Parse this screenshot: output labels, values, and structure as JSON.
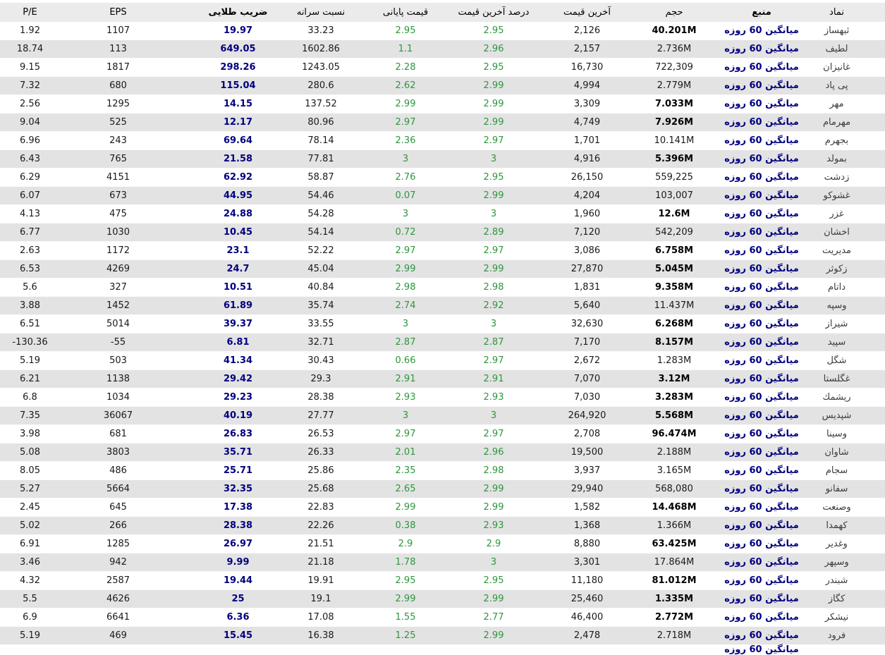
{
  "colors": {
    "source_link": "#000080",
    "golden_ratio": "#000080",
    "price_green": "#2d963c",
    "row_stripe": "#e3e3e3",
    "header_bg": "#ebebeb",
    "volume_bold": "#000000"
  },
  "table": {
    "columns": [
      {
        "key": "symbol",
        "label": "نماد",
        "bold": false
      },
      {
        "key": "source",
        "label": "منبع",
        "bold": true
      },
      {
        "key": "volume",
        "label": "حجم",
        "bold": false
      },
      {
        "key": "last_price",
        "label": "آخرین قیمت",
        "bold": false
      },
      {
        "key": "last_price_pct",
        "label": "درصد آخرین قیمت",
        "bold": false
      },
      {
        "key": "close_price",
        "label": "قیمت پایانی",
        "bold": false
      },
      {
        "key": "per_capita_ratio",
        "label": "نسبت سرانه",
        "bold": false
      },
      {
        "key": "golden_ratio",
        "label": "ضریب طلایی",
        "bold": true
      },
      {
        "key": "eps",
        "label": "EPS",
        "bold": false
      },
      {
        "key": "pe",
        "label": "P/E",
        "bold": false
      }
    ],
    "rows": [
      {
        "symbol": "ثبهساز",
        "source": "میانگین 60 روزه",
        "volume": "40.201M",
        "volume_bold": true,
        "last_price": "2,126",
        "last_price_pct": "2.95",
        "close_price": "2.95",
        "per_capita_ratio": "33.23",
        "golden_ratio": "19.97",
        "eps": "1107",
        "pe": "1.92"
      },
      {
        "symbol": "لطیف",
        "source": "میانگین 60 روزه",
        "volume": "2.736M",
        "volume_bold": false,
        "last_price": "2,157",
        "last_price_pct": "2.96",
        "close_price": "1.1",
        "per_capita_ratio": "1602.86",
        "golden_ratio": "649.05",
        "eps": "113",
        "pe": "18.74"
      },
      {
        "symbol": "غانیزان",
        "source": "میانگین 60 روزه",
        "volume": "722,309",
        "volume_bold": false,
        "last_price": "16,730",
        "last_price_pct": "2.95",
        "close_price": "2.28",
        "per_capita_ratio": "1243.05",
        "golden_ratio": "298.26",
        "eps": "1817",
        "pe": "9.15"
      },
      {
        "symbol": "پی پاد",
        "source": "میانگین 60 روزه",
        "volume": "2.779M",
        "volume_bold": false,
        "last_price": "4,994",
        "last_price_pct": "2.99",
        "close_price": "2.62",
        "per_capita_ratio": "280.6",
        "golden_ratio": "115.04",
        "eps": "680",
        "pe": "7.32"
      },
      {
        "symbol": "مهر",
        "source": "میانگین 60 روزه",
        "volume": "7.033M",
        "volume_bold": true,
        "last_price": "3,309",
        "last_price_pct": "2.99",
        "close_price": "2.99",
        "per_capita_ratio": "137.52",
        "golden_ratio": "14.15",
        "eps": "1295",
        "pe": "2.56"
      },
      {
        "symbol": "مهرمام",
        "source": "میانگین 60 روزه",
        "volume": "7.926M",
        "volume_bold": true,
        "last_price": "4,749",
        "last_price_pct": "2.99",
        "close_price": "2.97",
        "per_capita_ratio": "80.96",
        "golden_ratio": "12.17",
        "eps": "525",
        "pe": "9.04"
      },
      {
        "symbol": "بجهرم",
        "source": "میانگین 60 روزه",
        "volume": "10.141M",
        "volume_bold": false,
        "last_price": "1,701",
        "last_price_pct": "2.97",
        "close_price": "2.36",
        "per_capita_ratio": "78.14",
        "golden_ratio": "69.64",
        "eps": "243",
        "pe": "6.96"
      },
      {
        "symbol": "بمولد",
        "source": "میانگین 60 روزه",
        "volume": "5.396M",
        "volume_bold": true,
        "last_price": "4,916",
        "last_price_pct": "3",
        "close_price": "3",
        "per_capita_ratio": "77.81",
        "golden_ratio": "21.58",
        "eps": "765",
        "pe": "6.43"
      },
      {
        "symbol": "زدشت",
        "source": "میانگین 60 روزه",
        "volume": "559,225",
        "volume_bold": false,
        "last_price": "26,150",
        "last_price_pct": "2.95",
        "close_price": "2.76",
        "per_capita_ratio": "58.87",
        "golden_ratio": "62.92",
        "eps": "4151",
        "pe": "6.29"
      },
      {
        "symbol": "غشوكو",
        "source": "میانگین 60 روزه",
        "volume": "103,007",
        "volume_bold": false,
        "last_price": "4,204",
        "last_price_pct": "2.99",
        "close_price": "0.07",
        "per_capita_ratio": "54.46",
        "golden_ratio": "44.95",
        "eps": "673",
        "pe": "6.07"
      },
      {
        "symbol": "غزر",
        "source": "میانگین 60 روزه",
        "volume": "12.6M",
        "volume_bold": true,
        "last_price": "1,960",
        "last_price_pct": "3",
        "close_price": "3",
        "per_capita_ratio": "54.28",
        "golden_ratio": "24.88",
        "eps": "475",
        "pe": "4.13"
      },
      {
        "symbol": "اخشان",
        "source": "میانگین 60 روزه",
        "volume": "542,209",
        "volume_bold": false,
        "last_price": "7,120",
        "last_price_pct": "2.89",
        "close_price": "0.72",
        "per_capita_ratio": "54.14",
        "golden_ratio": "10.45",
        "eps": "1030",
        "pe": "6.77"
      },
      {
        "symbol": "مدیریت",
        "source": "میانگین 60 روزه",
        "volume": "6.758M",
        "volume_bold": true,
        "last_price": "3,086",
        "last_price_pct": "2.97",
        "close_price": "2.97",
        "per_capita_ratio": "52.22",
        "golden_ratio": "23.1",
        "eps": "1172",
        "pe": "2.63"
      },
      {
        "symbol": "زكوثر",
        "source": "میانگین 60 روزه",
        "volume": "5.045M",
        "volume_bold": true,
        "last_price": "27,870",
        "last_price_pct": "2.99",
        "close_price": "2.99",
        "per_capita_ratio": "45.04",
        "golden_ratio": "24.7",
        "eps": "4269",
        "pe": "6.53"
      },
      {
        "symbol": "داتام",
        "source": "میانگین 60 روزه",
        "volume": "9.358M",
        "volume_bold": true,
        "last_price": "1,831",
        "last_price_pct": "2.98",
        "close_price": "2.98",
        "per_capita_ratio": "40.84",
        "golden_ratio": "10.51",
        "eps": "327",
        "pe": "5.6"
      },
      {
        "symbol": "وسپه",
        "source": "میانگین 60 روزه",
        "volume": "11.437M",
        "volume_bold": false,
        "last_price": "5,640",
        "last_price_pct": "2.92",
        "close_price": "2.74",
        "per_capita_ratio": "35.74",
        "golden_ratio": "61.89",
        "eps": "1452",
        "pe": "3.88"
      },
      {
        "symbol": "شیراز",
        "source": "میانگین 60 روزه",
        "volume": "6.268M",
        "volume_bold": true,
        "last_price": "32,630",
        "last_price_pct": "3",
        "close_price": "3",
        "per_capita_ratio": "33.55",
        "golden_ratio": "39.37",
        "eps": "5014",
        "pe": "6.51"
      },
      {
        "symbol": "سپید",
        "source": "میانگین 60 روزه",
        "volume": "8.157M",
        "volume_bold": true,
        "last_price": "7,170",
        "last_price_pct": "2.87",
        "close_price": "2.87",
        "per_capita_ratio": "32.71",
        "golden_ratio": "6.81",
        "eps": "-55",
        "pe": "-130.36"
      },
      {
        "symbol": "شگل",
        "source": "میانگین 60 روزه",
        "volume": "1.283M",
        "volume_bold": false,
        "last_price": "2,672",
        "last_price_pct": "2.97",
        "close_price": "0.66",
        "per_capita_ratio": "30.43",
        "golden_ratio": "41.34",
        "eps": "503",
        "pe": "5.19"
      },
      {
        "symbol": "غگلستا",
        "source": "میانگین 60 روزه",
        "volume": "3.12M",
        "volume_bold": true,
        "last_price": "7,070",
        "last_price_pct": "2.91",
        "close_price": "2.91",
        "per_capita_ratio": "29.3",
        "golden_ratio": "29.42",
        "eps": "1138",
        "pe": "6.21"
      },
      {
        "symbol": "ریشمك",
        "source": "میانگین 60 روزه",
        "volume": "3.283M",
        "volume_bold": true,
        "last_price": "7,030",
        "last_price_pct": "2.93",
        "close_price": "2.93",
        "per_capita_ratio": "28.38",
        "golden_ratio": "29.23",
        "eps": "1034",
        "pe": "6.8"
      },
      {
        "symbol": "شپدیس",
        "source": "میانگین 60 روزه",
        "volume": "5.568M",
        "volume_bold": true,
        "last_price": "264,920",
        "last_price_pct": "3",
        "close_price": "3",
        "per_capita_ratio": "27.77",
        "golden_ratio": "40.19",
        "eps": "36067",
        "pe": "7.35"
      },
      {
        "symbol": "وسینا",
        "source": "میانگین 60 روزه",
        "volume": "96.474M",
        "volume_bold": true,
        "last_price": "2,708",
        "last_price_pct": "2.97",
        "close_price": "2.97",
        "per_capita_ratio": "26.53",
        "golden_ratio": "26.83",
        "eps": "681",
        "pe": "3.98"
      },
      {
        "symbol": "شاوان",
        "source": "میانگین 60 روزه",
        "volume": "2.188M",
        "volume_bold": false,
        "last_price": "19,500",
        "last_price_pct": "2.96",
        "close_price": "2.01",
        "per_capita_ratio": "26.33",
        "golden_ratio": "35.71",
        "eps": "3803",
        "pe": "5.08"
      },
      {
        "symbol": "سجام",
        "source": "میانگین 60 روزه",
        "volume": "3.165M",
        "volume_bold": false,
        "last_price": "3,937",
        "last_price_pct": "2.98",
        "close_price": "2.35",
        "per_capita_ratio": "25.86",
        "golden_ratio": "25.71",
        "eps": "486",
        "pe": "8.05"
      },
      {
        "symbol": "سفانو",
        "source": "میانگین 60 روزه",
        "volume": "568,080",
        "volume_bold": false,
        "last_price": "29,940",
        "last_price_pct": "2.99",
        "close_price": "2.65",
        "per_capita_ratio": "25.68",
        "golden_ratio": "32.35",
        "eps": "5664",
        "pe": "5.27"
      },
      {
        "symbol": "وصنعت",
        "source": "میانگین 60 روزه",
        "volume": "14.468M",
        "volume_bold": true,
        "last_price": "1,582",
        "last_price_pct": "2.99",
        "close_price": "2.99",
        "per_capita_ratio": "22.83",
        "golden_ratio": "17.38",
        "eps": "645",
        "pe": "2.45"
      },
      {
        "symbol": "كهمدا",
        "source": "میانگین 60 روزه",
        "volume": "1.366M",
        "volume_bold": false,
        "last_price": "1,368",
        "last_price_pct": "2.93",
        "close_price": "0.38",
        "per_capita_ratio": "22.26",
        "golden_ratio": "28.38",
        "eps": "266",
        "pe": "5.02"
      },
      {
        "symbol": "وغدیر",
        "source": "میانگین 60 روزه",
        "volume": "63.425M",
        "volume_bold": true,
        "last_price": "8,880",
        "last_price_pct": "2.9",
        "close_price": "2.9",
        "per_capita_ratio": "21.51",
        "golden_ratio": "26.97",
        "eps": "1285",
        "pe": "6.91"
      },
      {
        "symbol": "وسپهر",
        "source": "میانگین 60 روزه",
        "volume": "17.864M",
        "volume_bold": false,
        "last_price": "3,301",
        "last_price_pct": "3",
        "close_price": "1.78",
        "per_capita_ratio": "21.18",
        "golden_ratio": "9.99",
        "eps": "942",
        "pe": "3.46"
      },
      {
        "symbol": "شبندر",
        "source": "میانگین 60 روزه",
        "volume": "81.012M",
        "volume_bold": true,
        "last_price": "11,180",
        "last_price_pct": "2.95",
        "close_price": "2.95",
        "per_capita_ratio": "19.91",
        "golden_ratio": "19.44",
        "eps": "2587",
        "pe": "4.32"
      },
      {
        "symbol": "كگاز",
        "source": "میانگین 60 روزه",
        "volume": "1.335M",
        "volume_bold": true,
        "last_price": "25,460",
        "last_price_pct": "2.99",
        "close_price": "2.99",
        "per_capita_ratio": "19.1",
        "golden_ratio": "25",
        "eps": "4626",
        "pe": "5.5"
      },
      {
        "symbol": "نیشكر",
        "source": "میانگین 60 روزه",
        "volume": "2.772M",
        "volume_bold": true,
        "last_price": "46,400",
        "last_price_pct": "2.77",
        "close_price": "1.55",
        "per_capita_ratio": "17.08",
        "golden_ratio": "6.36",
        "eps": "6641",
        "pe": "6.9"
      },
      {
        "symbol": "فرود",
        "source": "میانگین 60 روزه",
        "volume": "2.718M",
        "volume_bold": false,
        "last_price": "2,478",
        "last_price_pct": "2.99",
        "close_price": "1.25",
        "per_capita_ratio": "16.38",
        "golden_ratio": "15.45",
        "eps": "469",
        "pe": "5.19"
      }
    ],
    "partial_row": {
      "source": "میانگین 60 روزه"
    }
  }
}
